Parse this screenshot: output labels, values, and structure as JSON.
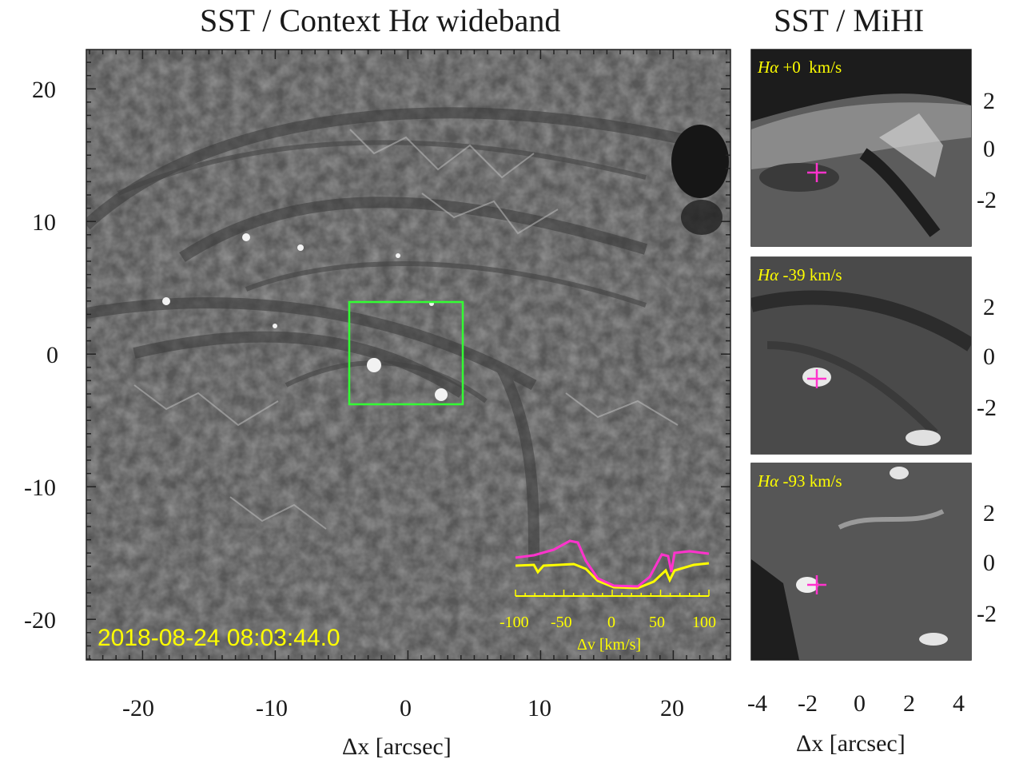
{
  "main": {
    "title_prefix": "SST / Context H",
    "title_alpha": "α",
    "title_suffix": " wideband",
    "x_label": "Δx [arcsec]",
    "x_ticks": [
      "-20",
      "-10",
      "0",
      "10",
      "20"
    ],
    "y_ticks": [
      "20",
      "10",
      "0",
      "-10",
      "-20"
    ],
    "timestamp": "2018-08-24 08:03:44.0",
    "box_color": "#33ff33"
  },
  "side": {
    "title": "SST / MiHI",
    "x_label": "Δx [arcsec]",
    "x_ticks": [
      "-4",
      "-2",
      "0",
      "2",
      "4"
    ],
    "y_ticks": [
      "2",
      "0",
      "-2"
    ],
    "cross_color": "#ff33cc",
    "panels": [
      {
        "alpha": "Hα",
        "velocity": " +0  km/s"
      },
      {
        "alpha": "Hα",
        "velocity": " -39 km/s"
      },
      {
        "alpha": "Hα",
        "velocity": " -93 km/s"
      }
    ]
  },
  "inset": {
    "x_label": "Δv [km/s]",
    "x_ticks": [
      "-100",
      "-50",
      "0",
      "50",
      "100"
    ],
    "colors": {
      "profile_a": "#ff33cc",
      "profile_b": "#ffff00"
    }
  }
}
